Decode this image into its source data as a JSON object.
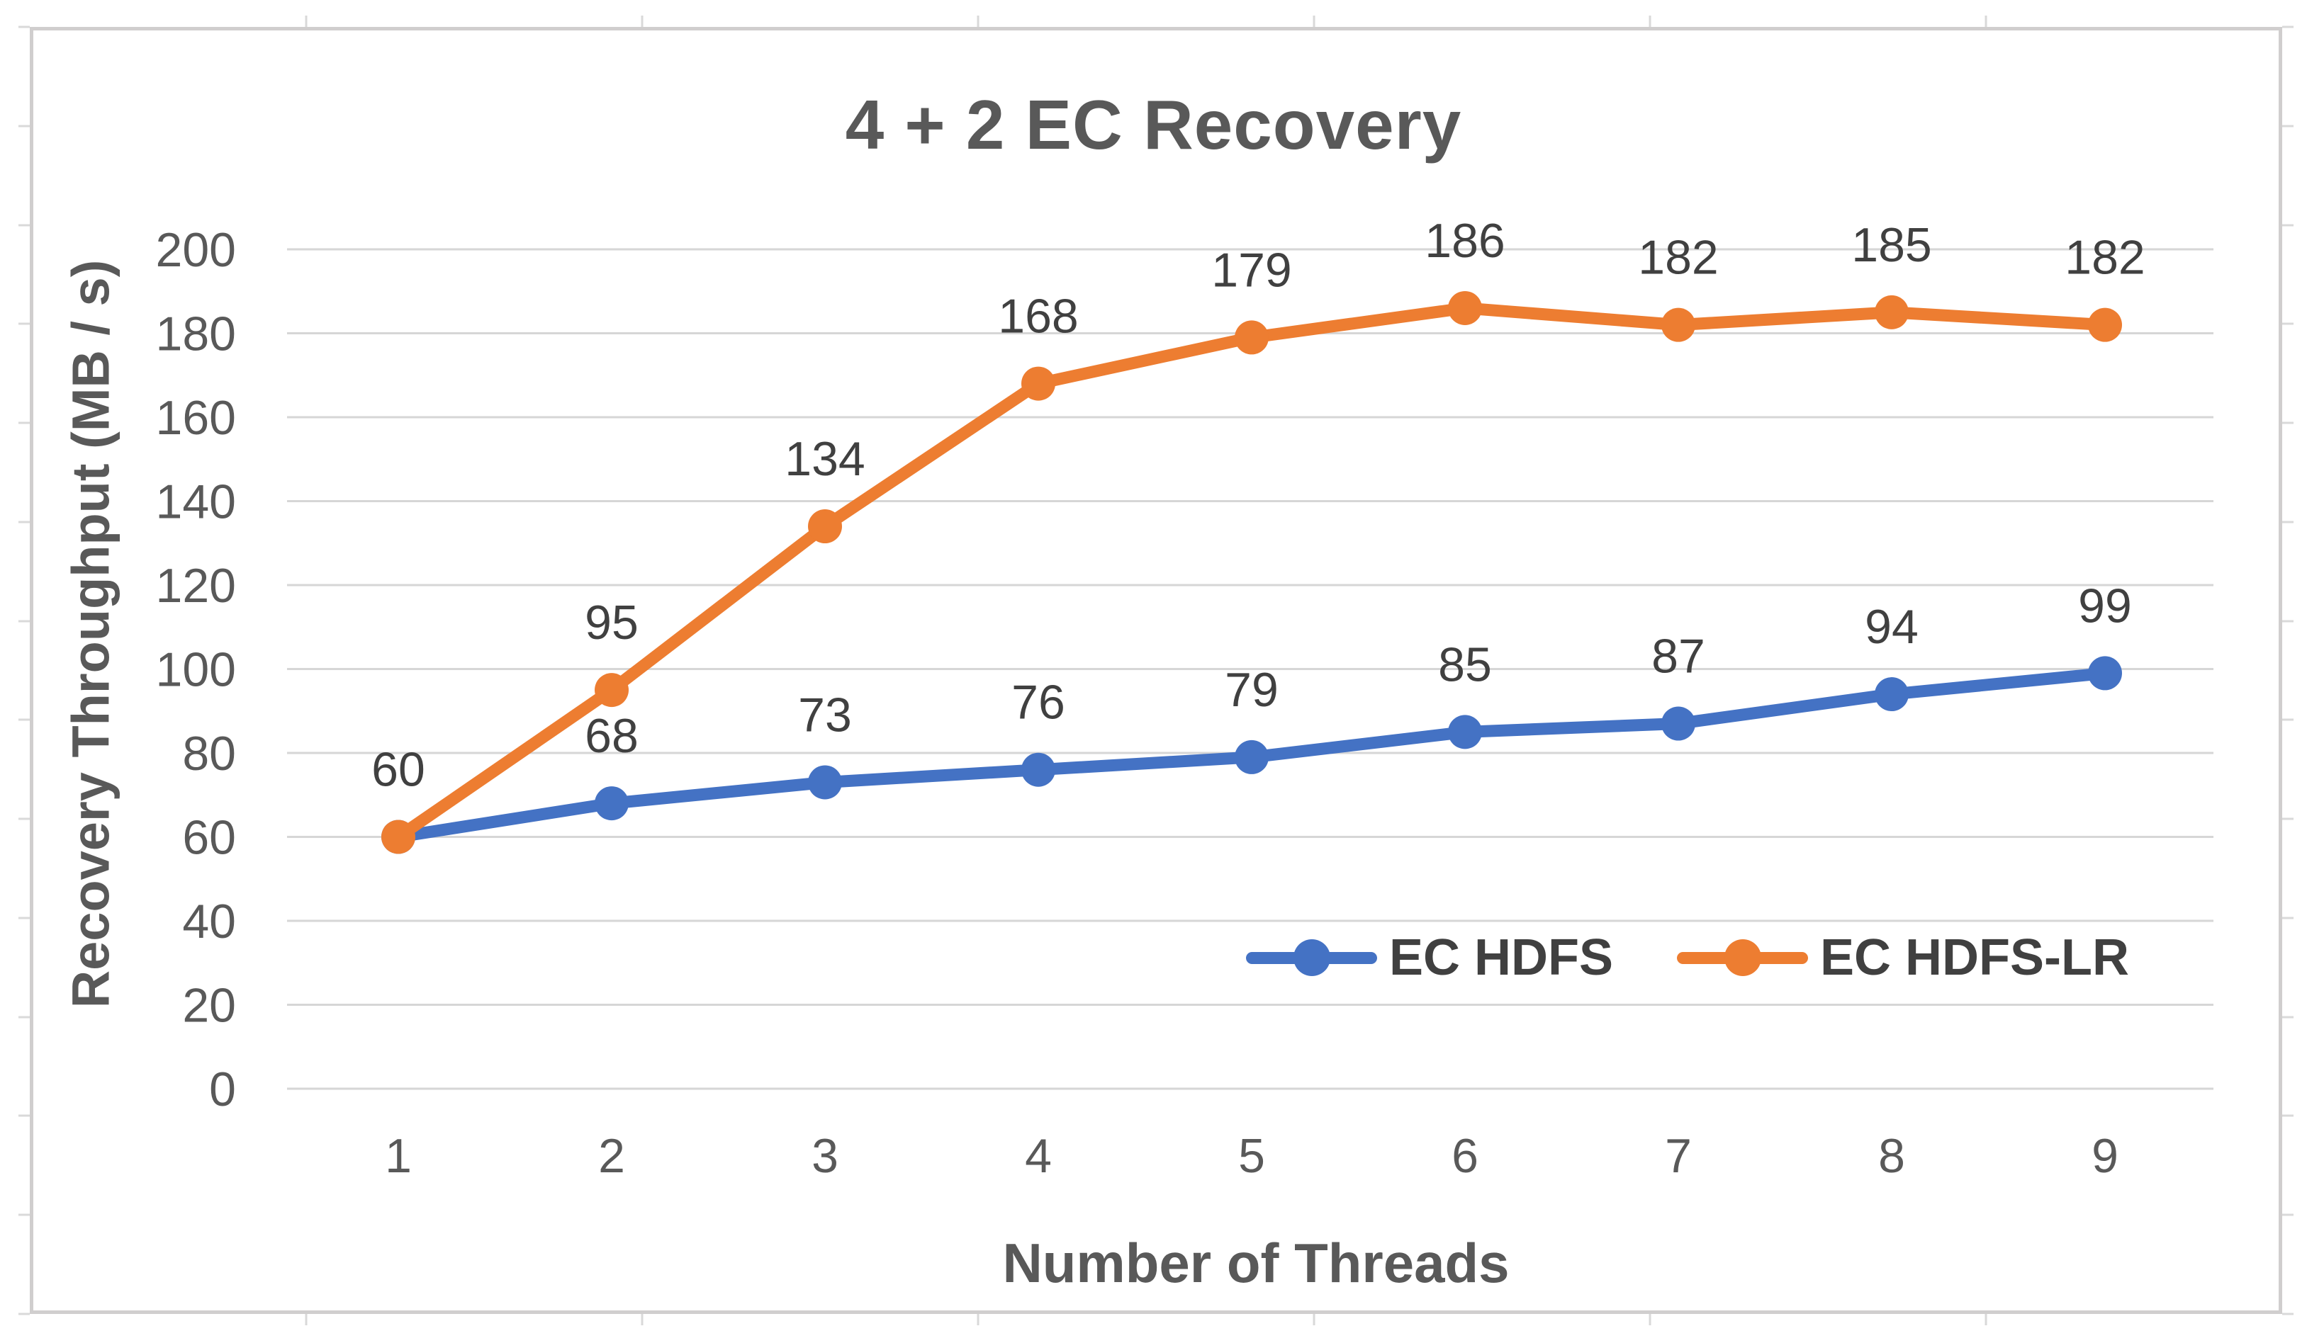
{
  "chart_data": {
    "type": "line",
    "title": "4 + 2 EC Recovery",
    "xlabel": "Number of Threads",
    "ylabel": "Recovery Throughput (MB / s)",
    "x": [
      1,
      2,
      3,
      4,
      5,
      6,
      7,
      8,
      9
    ],
    "ylim": [
      0,
      200
    ],
    "ytick_step": 20,
    "yticks": [
      0,
      20,
      40,
      60,
      80,
      100,
      120,
      140,
      160,
      180,
      200
    ],
    "grid": true,
    "legend_position": "inside-bottom-center-right",
    "series": [
      {
        "name": "EC HDFS",
        "color": "#4472C4",
        "values": [
          60,
          68,
          73,
          76,
          79,
          85,
          87,
          94,
          99
        ],
        "point_labels": [
          "",
          "68",
          "73",
          "76",
          "79",
          "85",
          "87",
          "94",
          "99"
        ]
      },
      {
        "name": "EC HDFS-LR",
        "color": "#ED7D31",
        "values": [
          60,
          95,
          134,
          168,
          179,
          186,
          182,
          185,
          182
        ],
        "point_labels": [
          "60",
          "95",
          "134",
          "168",
          "179",
          "186",
          "182",
          "185",
          "182"
        ]
      }
    ]
  },
  "colors": {
    "grid_line": "#D6D6D6",
    "chart_border": "#D0CECE",
    "exterior_tick": "#D9D9D9",
    "tick_text": "#595959",
    "title_text": "#595959",
    "axis_title_text": "#595959",
    "data_label_text": "#404040",
    "legend_text": "#404040"
  }
}
